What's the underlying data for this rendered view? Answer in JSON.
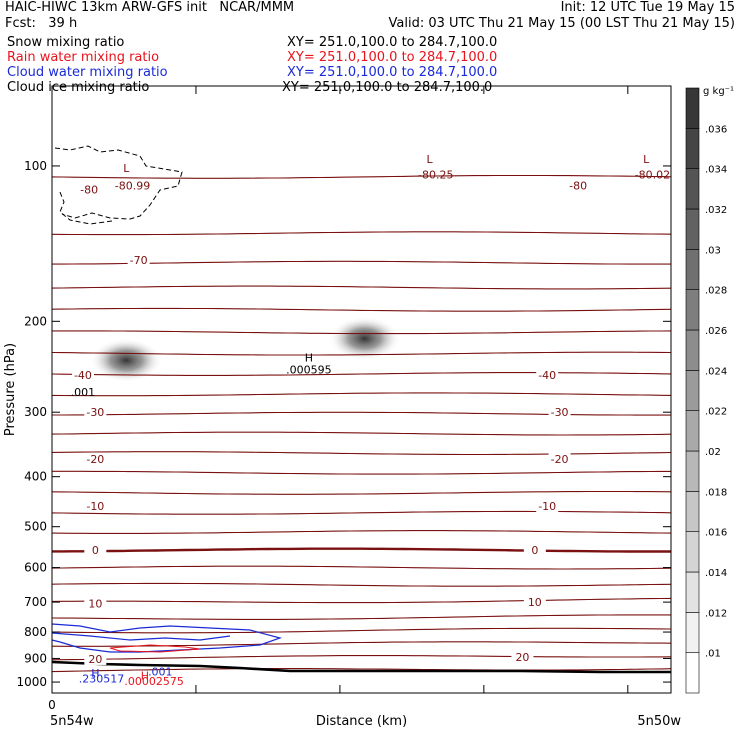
{
  "header": {
    "line1_left": "HAIC-HIWC 13km ARW-GFS init   NCAR/MMM",
    "line1_right": "Init: 12 UTC Tue 19 May 15",
    "fcst_label": "Fcst:   39 h",
    "valid": "Valid: 03 UTC Thu 21 May 15 (00 LST Thu 21 May 15)"
  },
  "legend": [
    {
      "name": "Snow mixing ratio",
      "xy": "XY= 251.0,100.0 to 284.7,100.0",
      "color": "#000000"
    },
    {
      "name": "Rain water mixing ratio",
      "xy": "XY= 251.0,100.0 to 284.7,100.0",
      "color": "#e8141c"
    },
    {
      "name": "Cloud water mixing ratio",
      "xy": "XY= 251.0,100.0 to 284.7,100.0",
      "color": "#1a2bd6"
    },
    {
      "name": "Cloud ice mixing ratio",
      "xy": "XY= 251.0,100.0 to 284.7,100.0",
      "color": "#000000"
    }
  ],
  "colors": {
    "temperature": "#7a1010",
    "ground": "#000000",
    "rain": "#e8141c",
    "cloud_water": "#1a2bd6"
  },
  "chart_data": {
    "type": "cross-section",
    "xlabel": "Distance (km)",
    "ylabel": "Pressure (hPa)",
    "x_tick_labels": [
      "0"
    ],
    "x_end_labels": [
      "5n54w",
      "5n50w"
    ],
    "y_axis": {
      "scale": "log",
      "range": [
        1050,
        70
      ],
      "ticks": [
        100,
        200,
        300,
        400,
        500,
        600,
        700,
        800,
        900,
        1000
      ]
    },
    "colorbar": {
      "unit": "g kg⁻¹",
      "levels": [
        ".01",
        ".012",
        ".014",
        ".016",
        ".018",
        ".02",
        ".022",
        ".024",
        ".026",
        ".028",
        ".03",
        ".032",
        ".034",
        ".036"
      ]
    },
    "temperature_labels": [
      {
        "text": "-80",
        "x": 0.06,
        "p": 111
      },
      {
        "text": "-80",
        "x": 0.85,
        "p": 109
      },
      {
        "text": "-70",
        "x": 0.14,
        "p": 152
      },
      {
        "text": "-40",
        "x": 0.05,
        "p": 254
      },
      {
        "text": "-40",
        "x": 0.8,
        "p": 254
      },
      {
        "text": "-30",
        "x": 0.07,
        "p": 300
      },
      {
        "text": "-30",
        "x": 0.82,
        "p": 300
      },
      {
        "text": "-20",
        "x": 0.07,
        "p": 370
      },
      {
        "text": "-20",
        "x": 0.82,
        "p": 370
      },
      {
        "text": "-10",
        "x": 0.07,
        "p": 456
      },
      {
        "text": "-10",
        "x": 0.8,
        "p": 456
      },
      {
        "text": "0",
        "x": 0.07,
        "p": 555
      },
      {
        "text": "0",
        "x": 0.78,
        "p": 555
      },
      {
        "text": "10",
        "x": 0.07,
        "p": 705
      },
      {
        "text": "10",
        "x": 0.78,
        "p": 700
      },
      {
        "text": "20",
        "x": 0.07,
        "p": 902
      },
      {
        "text": "20",
        "x": 0.76,
        "p": 895
      }
    ],
    "extrema_labels": [
      {
        "text": "L",
        "x": 0.12,
        "p": 101,
        "color": "temperature"
      },
      {
        "text": "-80.99",
        "x": 0.13,
        "p": 109,
        "color": "temperature"
      },
      {
        "text": "L",
        "x": 0.61,
        "p": 97,
        "color": "temperature"
      },
      {
        "text": "-80.25",
        "x": 0.62,
        "p": 104,
        "color": "temperature"
      },
      {
        "text": "L",
        "x": 0.96,
        "p": 97,
        "color": "temperature"
      },
      {
        "text": "-80.02",
        "x": 0.97,
        "p": 104,
        "color": "temperature"
      },
      {
        "text": "H",
        "x": 0.415,
        "p": 235,
        "color": "ground"
      },
      {
        "text": ".000595",
        "x": 0.415,
        "p": 248,
        "color": "ground"
      },
      {
        "text": ".001",
        "x": 0.05,
        "p": 274,
        "color": "ground"
      },
      {
        "text": "H",
        "x": 0.07,
        "p": 960,
        "color": "cloud_water"
      },
      {
        "text": ".230517",
        "x": 0.08,
        "p": 985,
        "color": "cloud_water"
      },
      {
        "text": ".001",
        "x": 0.175,
        "p": 953,
        "color": "cloud_water"
      },
      {
        "text": "H",
        "x": 0.15,
        "p": 972,
        "color": "rain"
      },
      {
        "text": ".00002575",
        "x": 0.165,
        "p": 995,
        "color": "rain"
      }
    ],
    "snow_maxima": [
      {
        "x": 0.12,
        "p": 238,
        "value": 0.035
      },
      {
        "x": 0.505,
        "p": 216,
        "value": 0.03
      }
    ],
    "isotherm_pressures": [
      105,
      135,
      154,
      172,
      190,
      210,
      231,
      253,
      277,
      302,
      330,
      360,
      393,
      430,
      470,
      512,
      555,
      600,
      648,
      702,
      755,
      800,
      848,
      900,
      952
    ]
  }
}
